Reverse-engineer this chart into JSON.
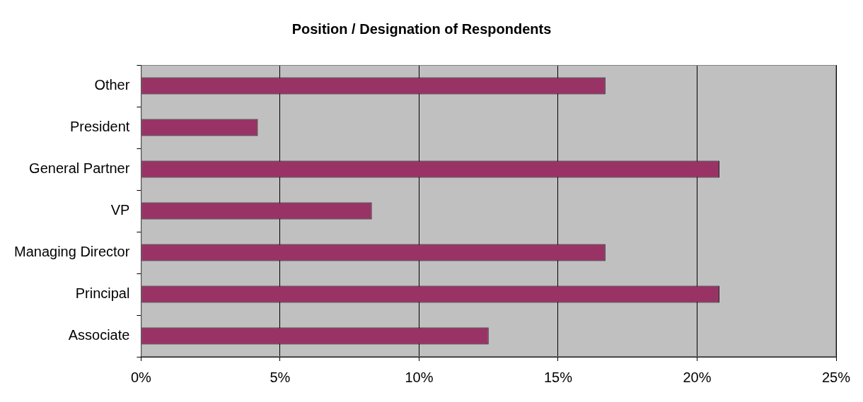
{
  "chart_data": {
    "type": "bar",
    "orientation": "horizontal",
    "title": "Position / Designation of Respondents",
    "categories": [
      "Other",
      "President",
      "General Partner",
      "VP",
      "Managing Director",
      "Principal",
      "Associate"
    ],
    "values": [
      16.7,
      4.2,
      20.8,
      8.3,
      16.7,
      20.8,
      12.5
    ],
    "color": "#993366",
    "xlim": [
      0,
      25
    ],
    "xticks": [
      {
        "value": 0,
        "label": "0%"
      },
      {
        "value": 5,
        "label": "5%"
      },
      {
        "value": 10,
        "label": "10%"
      },
      {
        "value": 15,
        "label": "15%"
      },
      {
        "value": 20,
        "label": "20%"
      },
      {
        "value": 25,
        "label": "25%"
      }
    ],
    "grid": "x",
    "legend": false
  }
}
